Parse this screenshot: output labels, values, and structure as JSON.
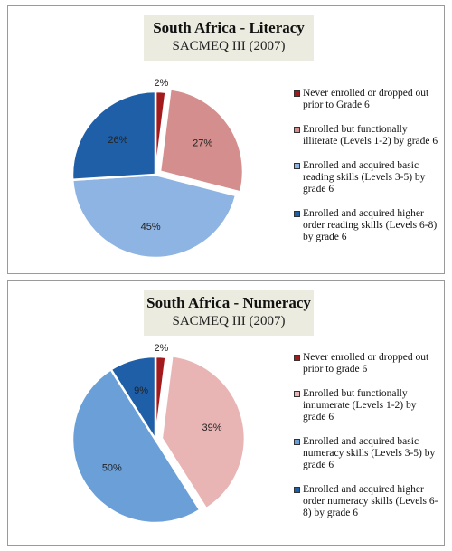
{
  "colors": {
    "dark_red": "#a31a1c",
    "rose": "#d48e8e",
    "pink": "#e8b4b4",
    "light_blue": "#8db4e2",
    "mid_blue": "#6a9fd8",
    "dark_blue": "#1f5fa8",
    "title_bg": "#ecebe0"
  },
  "chart_data": [
    {
      "type": "pie",
      "title": "South Africa - Literacy",
      "subtitle": "SACMEQ III (2007)",
      "slice_labels": [
        "2%",
        "27%",
        "45%",
        "26%"
      ],
      "legend_position": "right",
      "series": [
        {
          "name": "Never enrolled or dropped out prior to Grade 6",
          "value": 2,
          "color": "#a31a1c"
        },
        {
          "name": "Enrolled but functionally illiterate (Levels 1-2) by grade 6",
          "value": 27,
          "color": "#d48e8e"
        },
        {
          "name": "Enrolled and acquired basic reading skills (Levels 3-5) by grade 6",
          "value": 45,
          "color": "#8db4e2"
        },
        {
          "name": "Enrolled and acquired higher order reading skills (Levels 6-8) by grade 6",
          "value": 26,
          "color": "#1f5fa8"
        }
      ]
    },
    {
      "type": "pie",
      "title": "South Africa - Numeracy",
      "subtitle": "SACMEQ III (2007)",
      "slice_labels": [
        "2%",
        "39%",
        "50%",
        "9%"
      ],
      "legend_position": "right",
      "series": [
        {
          "name": "Never enrolled or dropped out prior to grade 6",
          "value": 2,
          "color": "#a31a1c"
        },
        {
          "name": "Enrolled but functionally innumerate (Levels 1-2) by grade 6",
          "value": 39,
          "color": "#e8b4b4"
        },
        {
          "name": "Enrolled and acquired basic numeracy skills (Levels 3-5) by grade 6",
          "value": 50,
          "color": "#6a9fd8"
        },
        {
          "name": "Enrolled and acquired higher order numeracy skills (Levels 6-8) by grade 6",
          "value": 9,
          "color": "#1f5fa8"
        }
      ]
    }
  ]
}
